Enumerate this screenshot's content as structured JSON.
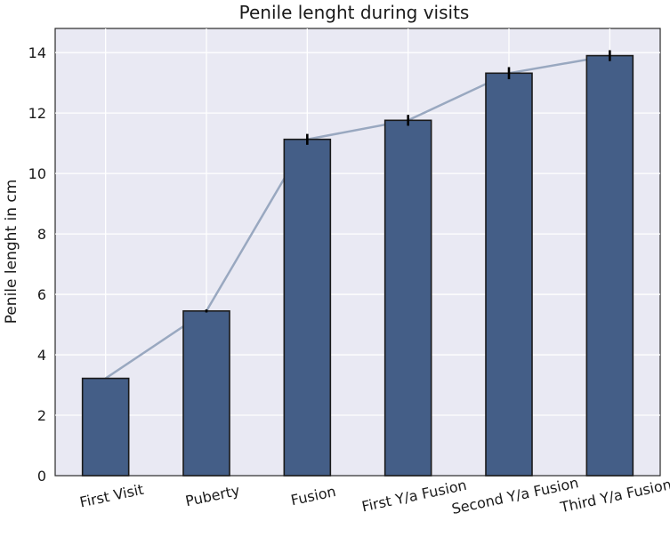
{
  "chart_data": {
    "type": "bar",
    "title": "Penile lenght during visits",
    "xlabel": "",
    "ylabel": "Penile lenght in cm",
    "categories": [
      "First Visit",
      "Puberty",
      "Fusion",
      "First Y/a Fusion",
      "Second Y/a Fusion",
      "Third Y/a Fusion"
    ],
    "series": [
      {
        "values": [
          3.22,
          5.45,
          11.13,
          11.76,
          13.32,
          13.9
        ]
      }
    ],
    "error_bars": [
      0.0,
      0.05,
      0.18,
      0.18,
      0.2,
      0.18
    ],
    "trend_line": true,
    "ylim": [
      0,
      14.8
    ],
    "yticks": [
      0,
      2,
      4,
      6,
      8,
      10,
      12,
      14
    ],
    "grid": true,
    "colors": {
      "bar": "#445e87",
      "bar_edge": "#1a1a1a",
      "trend_line": "#99a8c0",
      "plot_background": "#e9e9f3",
      "grid": "#ffffff"
    }
  }
}
